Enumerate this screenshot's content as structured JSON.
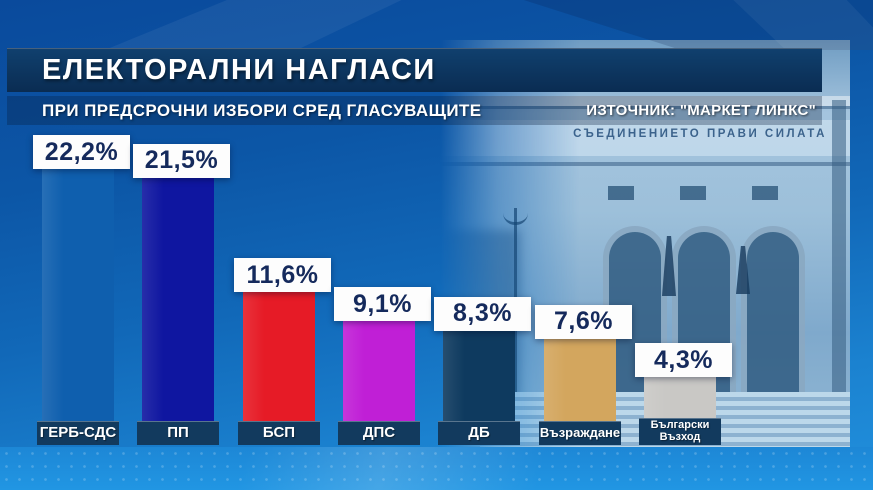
{
  "header": {
    "title": "ЕЛЕКТОРАЛНИ НАГЛАСИ",
    "subtitle": "ПРИ ПРЕДСРОЧНИ ИЗБОРИ СРЕД ГЛАСУВАЩИТЕ",
    "source": "ИЗТОЧНИК: \"МАРКЕТ ЛИНКС\""
  },
  "background": {
    "building_inscription": "СЪЕДИНЕНИЕТО ПРАВИ СИЛАТА"
  },
  "chart_data": {
    "type": "bar",
    "title": "ЕЛЕКТОРАЛНИ НАГЛАСИ",
    "subtitle": "ПРИ ПРЕДСРОЧНИ ИЗБОРИ СРЕД ГЛАСУВАЩИТЕ",
    "source": "ИЗТОЧНИК: \"МАРКЕТ ЛИНКС\"",
    "categories": [
      "ГЕРБ-СДС",
      "ПП",
      "БСП",
      "ДПС",
      "ДБ",
      "Възраждане",
      "Български Възход"
    ],
    "values": [
      22.2,
      21.5,
      11.6,
      9.1,
      8.3,
      7.6,
      4.3
    ],
    "value_labels": [
      "22,2%",
      "21,5%",
      "11,6%",
      "9,1%",
      "8,3%",
      "7,6%",
      "4,3%"
    ],
    "bar_colors": [
      "#0f5fae",
      "#0f16a0",
      "#e61b26",
      "#c01fd6",
      "#0e3a5f",
      "#d3a65e",
      "#c9c8c5"
    ],
    "ylim": [
      0,
      24
    ],
    "grid": false,
    "legend": "none",
    "value_labels_position": "above-bar",
    "category_labels_position": "below-bar"
  },
  "colors": {
    "title_band": "#0c3258",
    "label_box": "#123a5e",
    "value_text": "#152a5c",
    "background_top": "#0a4a9c",
    "background_bottom": "#2196e3"
  }
}
